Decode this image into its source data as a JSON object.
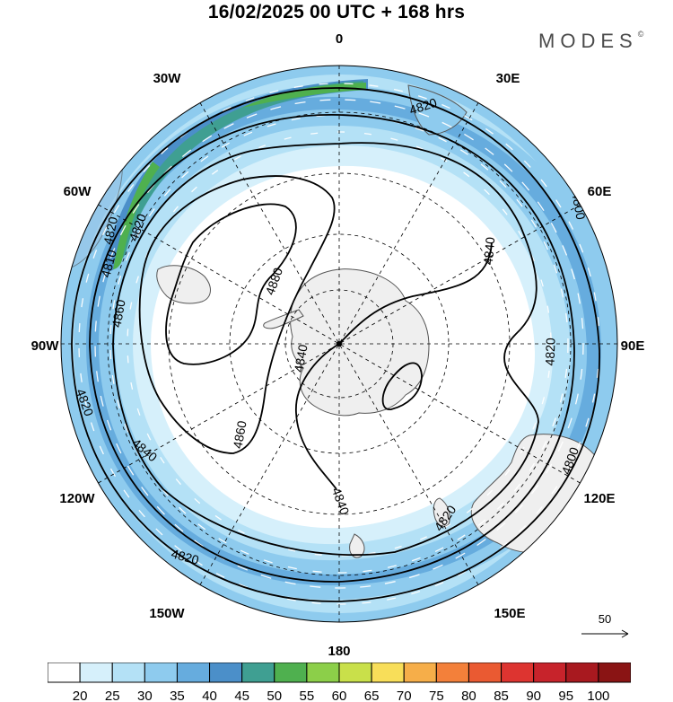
{
  "title": "16/02/2025  00 UTC  + 168 hrs",
  "brand": {
    "name": "MODES",
    "mark": "©"
  },
  "map": {
    "projection": "south-polar-stereographic",
    "longitude_labels": [
      "0",
      "30E",
      "60E",
      "90E",
      "120E",
      "150E",
      "180",
      "150W",
      "120W",
      "90W",
      "60W",
      "30W"
    ],
    "contours": {
      "field": "geopotential height",
      "labels": [
        "4820",
        "4800",
        "4820",
        "4820",
        "4800",
        "4820",
        "4820",
        "4840",
        "4820",
        "4860",
        "4810",
        "4820",
        "4880",
        "4840",
        "4860",
        "4840",
        "4840"
      ]
    },
    "colors": {
      "land_fill": "#efefef",
      "coastline": "#555555",
      "contour": "#000000",
      "grid": "#000000",
      "wind_arrow": "#ffffff"
    }
  },
  "reference_vector": {
    "label": "50"
  },
  "colorbar": {
    "ticks": [
      "20",
      "25",
      "30",
      "35",
      "40",
      "45",
      "50",
      "55",
      "60",
      "65",
      "70",
      "75",
      "80",
      "85",
      "90",
      "95",
      "100"
    ],
    "colors": [
      "#ffffff",
      "#d6f0fb",
      "#b4e1f6",
      "#8ecbee",
      "#66acde",
      "#4b8fc9",
      "#3f9f92",
      "#4fb04f",
      "#8ccf49",
      "#c9e04a",
      "#f8de59",
      "#f6ae49",
      "#f3803a",
      "#ea5a32",
      "#dd3430",
      "#c7232b",
      "#a8191f",
      "#8a1414"
    ]
  }
}
